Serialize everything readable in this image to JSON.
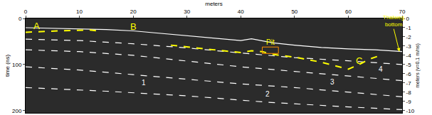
{
  "chart_data": {
    "type": "radargram",
    "x_label": "meters",
    "y_label": "time (ns)",
    "y2_label": "meters (v=0.1 m/ns)",
    "xlim": [
      0,
      70
    ],
    "xticks": [
      0,
      10,
      20,
      30,
      40,
      50,
      60,
      70
    ],
    "ylim": [
      0,
      205
    ],
    "yticks": [
      0,
      100,
      200
    ],
    "y2lim": [
      0,
      -10.25
    ],
    "y2ticks": [
      0,
      -1,
      -2,
      -3,
      -4,
      -5,
      -6,
      -7,
      -8,
      -9,
      -10
    ],
    "grid": false,
    "color": "#2b2b2b",
    "series": [
      {
        "color": "#ffffff",
        "line_style": "solid",
        "x": [
          0,
          5,
          10,
          15,
          20,
          25,
          30,
          35,
          40,
          42,
          44,
          46,
          50,
          55,
          60,
          65,
          70
        ],
        "values": [
          20,
          21,
          22,
          24,
          27,
          32,
          38,
          43,
          48,
          44,
          48,
          53,
          58,
          63,
          66,
          68,
          72
        ]
      },
      {
        "color": "#ffffff",
        "line_style": "dash",
        "x": [
          0,
          10,
          20,
          30,
          40,
          50,
          60,
          70
        ],
        "values": [
          45,
          48,
          55,
          64,
          75,
          85,
          92,
          100
        ]
      },
      {
        "color": "#ffffff",
        "line_style": "dash",
        "x": [
          0,
          10,
          20,
          30,
          40,
          50,
          60,
          70
        ],
        "values": [
          68,
          72,
          80,
          92,
          105,
          115,
          125,
          135
        ]
      },
      {
        "color": "#ffffff",
        "line_style": "dash",
        "x": [
          0,
          10,
          20,
          30,
          40,
          50,
          60,
          70
        ],
        "values": [
          105,
          112,
          122,
          132,
          142,
          150,
          160,
          170
        ]
      },
      {
        "color": "#ffffff",
        "line_style": "dash",
        "x": [
          0,
          15,
          30,
          45,
          60,
          70
        ],
        "values": [
          150,
          158,
          168,
          182,
          192,
          198
        ]
      },
      {
        "color": "#ffff00",
        "line_style": "dash",
        "x": [
          0,
          3,
          6,
          9,
          12,
          14
        ],
        "values": [
          30,
          28,
          27,
          26,
          25,
          28
        ]
      },
      {
        "color": "#ffff00",
        "line_style": "dash",
        "x": [
          27,
          30,
          35,
          40,
          42,
          44,
          46,
          50,
          55,
          60,
          62,
          64,
          66
        ],
        "values": [
          58,
          62,
          68,
          74,
          70,
          72,
          78,
          84,
          95,
          110,
          100,
          88,
          80
        ]
      }
    ],
    "pit_box": {
      "x": [
        44,
        47
      ],
      "y": [
        62,
        76
      ],
      "color": "#ff8c00"
    },
    "annotations": [
      {
        "text": "A",
        "x": 2,
        "y": 16,
        "color": "#ffff00"
      },
      {
        "text": "B",
        "x": 20,
        "y": 17,
        "color": "#ffff00"
      },
      {
        "text": "C",
        "x": 62,
        "y": 92,
        "color": "#ffff00"
      },
      {
        "text": "Pit",
        "x": 45.5,
        "y": 52,
        "color": "#ffff00"
      },
      {
        "text": "1",
        "x": 22,
        "y": 140,
        "color": "#ffffff"
      },
      {
        "text": "2",
        "x": 45,
        "y": 164,
        "color": "#ffffff"
      },
      {
        "text": "3",
        "x": 57,
        "y": 138,
        "color": "#ffffff"
      },
      {
        "text": "4",
        "x": 66,
        "y": 110,
        "color": "#ffffff"
      },
      {
        "text": "Thalweg\nbottom",
        "x": 69.5,
        "y": 72,
        "color": "#ffff00",
        "arrow": true
      }
    ]
  }
}
